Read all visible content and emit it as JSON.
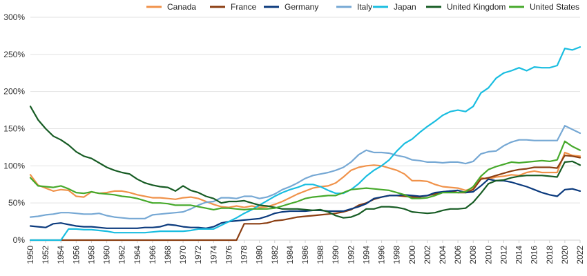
{
  "chart_data": {
    "type": "line",
    "title": "",
    "xlabel": "",
    "ylabel": "",
    "x": [
      1950,
      1951,
      1952,
      1953,
      1954,
      1955,
      1956,
      1957,
      1958,
      1959,
      1960,
      1961,
      1962,
      1963,
      1964,
      1965,
      1966,
      1967,
      1968,
      1969,
      1970,
      1971,
      1972,
      1973,
      1974,
      1975,
      1976,
      1977,
      1978,
      1979,
      1980,
      1981,
      1982,
      1983,
      1984,
      1985,
      1986,
      1987,
      1988,
      1989,
      1990,
      1991,
      1992,
      1993,
      1994,
      1995,
      1996,
      1997,
      1998,
      1999,
      2000,
      2001,
      2002,
      2003,
      2004,
      2005,
      2006,
      2007,
      2008,
      2009,
      2010,
      2011,
      2012,
      2013,
      2014,
      2015,
      2016,
      2017,
      2018,
      2019,
      2020,
      2021,
      2022
    ],
    "x_ticks": [
      1950,
      1952,
      1954,
      1956,
      1958,
      1960,
      1962,
      1964,
      1966,
      1968,
      1970,
      1972,
      1974,
      1976,
      1978,
      1980,
      1982,
      1984,
      1986,
      1988,
      1990,
      1992,
      1994,
      1996,
      1998,
      2000,
      2002,
      2004,
      2006,
      2008,
      2010,
      2012,
      2014,
      2016,
      2018,
      2020,
      2022
    ],
    "x_tick_labels": [
      "1950",
      "1952",
      "1954",
      "1956",
      "1958",
      "1960",
      "1962",
      "1964",
      "1966",
      "1968",
      "1970",
      "1972",
      "1974",
      "1976",
      "1978",
      "1980",
      "1982",
      "1984",
      "1986",
      "1988",
      "1990",
      "1992",
      "1994",
      "1996",
      "1998",
      "2000",
      "2002",
      "2004",
      "2006",
      "2008",
      "2010",
      "2012",
      "2014",
      "2016",
      "2018",
      "2020",
      "2022"
    ],
    "xlim": [
      1950,
      2022
    ],
    "ylim": [
      0,
      300
    ],
    "y_ticks": [
      0,
      50,
      100,
      150,
      200,
      250,
      300
    ],
    "y_tick_labels": [
      "0%",
      "50%",
      "100%",
      "150%",
      "200%",
      "250%",
      "300%"
    ],
    "grid": true,
    "legend_position": "top",
    "series": [
      {
        "name": "Canada",
        "color": "#f0924a",
        "values": [
          88,
          74,
          70,
          66,
          68,
          67,
          59,
          58,
          65,
          63,
          64,
          66,
          66,
          64,
          61,
          59,
          57,
          57,
          56,
          55,
          57,
          58,
          56,
          52,
          48,
          45,
          44,
          46,
          44,
          46,
          44,
          45,
          48,
          52,
          57,
          62,
          66,
          70,
          72,
          73,
          77,
          85,
          94,
          98,
          100,
          101,
          100,
          97,
          94,
          89,
          80,
          80,
          79,
          75,
          72,
          71,
          70,
          67,
          70,
          84,
          82,
          85,
          86,
          88,
          87,
          91,
          93,
          91,
          91,
          91,
          118,
          114,
          113
        ]
      },
      {
        "name": "France",
        "color": "#8b3e12",
        "values": [
          0,
          0,
          0,
          0,
          0,
          0,
          0,
          0,
          0,
          0,
          0,
          0,
          0,
          0,
          0,
          0,
          0,
          0,
          0,
          0,
          0,
          0,
          0,
          0,
          0,
          0,
          0,
          0,
          22,
          22,
          22,
          23,
          26,
          27,
          29,
          31,
          32,
          33,
          34,
          35,
          36,
          38,
          41,
          47,
          50,
          55,
          58,
          60,
          60,
          59,
          58,
          58,
          60,
          62,
          65,
          66,
          64,
          64,
          68,
          82,
          84,
          87,
          90,
          93,
          95,
          96,
          98,
          98,
          98,
          97,
          114,
          113,
          111
        ]
      },
      {
        "name": "Germany",
        "color": "#0b3a7d",
        "values": [
          19,
          18,
          17,
          22,
          23,
          21,
          19,
          18,
          18,
          17,
          16,
          16,
          16,
          16,
          16,
          17,
          17,
          18,
          21,
          20,
          18,
          17,
          17,
          16,
          18,
          23,
          25,
          26,
          27,
          28,
          29,
          32,
          36,
          38,
          39,
          39,
          39,
          40,
          40,
          39,
          39,
          39,
          42,
          45,
          49,
          56,
          58,
          60,
          60,
          61,
          60,
          59,
          60,
          64,
          65,
          66,
          67,
          64,
          65,
          73,
          82,
          80,
          80,
          78,
          75,
          72,
          68,
          64,
          61,
          59,
          68,
          69,
          66
        ]
      },
      {
        "name": "Italy",
        "color": "#76a8d4",
        "values": [
          31,
          32,
          34,
          35,
          37,
          37,
          36,
          35,
          35,
          36,
          33,
          31,
          30,
          29,
          29,
          29,
          34,
          35,
          36,
          37,
          38,
          42,
          47,
          51,
          52,
          57,
          57,
          56,
          59,
          59,
          56,
          58,
          62,
          68,
          72,
          77,
          83,
          87,
          89,
          91,
          94,
          98,
          105,
          115,
          121,
          118,
          118,
          117,
          114,
          112,
          108,
          107,
          105,
          105,
          104,
          105,
          105,
          103,
          106,
          116,
          119,
          120,
          127,
          132,
          135,
          135,
          134,
          134,
          134,
          134,
          154,
          149,
          144
        ]
      },
      {
        "name": "Japan",
        "color": "#19bde0",
        "values": [
          0,
          0,
          0,
          0,
          0,
          15,
          15,
          14,
          14,
          13,
          12,
          10,
          10,
          10,
          10,
          10,
          11,
          12,
          12,
          12,
          12,
          13,
          15,
          15,
          15,
          20,
          25,
          30,
          36,
          41,
          47,
          53,
          59,
          64,
          68,
          71,
          75,
          75,
          72,
          67,
          63,
          63,
          68,
          76,
          86,
          94,
          100,
          108,
          120,
          130,
          136,
          145,
          153,
          160,
          168,
          173,
          175,
          173,
          180,
          198,
          205,
          218,
          225,
          228,
          232,
          228,
          233,
          232,
          232,
          235,
          258,
          256,
          260
        ]
      },
      {
        "name": "United Kingdom",
        "color": "#175c24",
        "values": [
          180,
          162,
          150,
          140,
          135,
          128,
          119,
          113,
          110,
          104,
          98,
          94,
          91,
          89,
          82,
          77,
          74,
          72,
          71,
          66,
          73,
          67,
          64,
          59,
          56,
          50,
          52,
          52,
          53,
          50,
          47,
          46,
          44,
          42,
          42,
          42,
          41,
          40,
          41,
          38,
          33,
          30,
          31,
          35,
          42,
          42,
          45,
          45,
          44,
          42,
          38,
          37,
          36,
          37,
          40,
          42,
          42,
          43,
          51,
          63,
          76,
          80,
          81,
          84,
          86,
          87,
          87,
          87,
          86,
          85,
          105,
          106,
          101
        ]
      },
      {
        "name": "United States",
        "color": "#46a92b",
        "values": [
          84,
          73,
          72,
          71,
          73,
          69,
          64,
          63,
          65,
          63,
          62,
          61,
          59,
          58,
          56,
          53,
          50,
          50,
          49,
          47,
          47,
          47,
          45,
          43,
          41,
          43,
          43,
          42,
          41,
          42,
          42,
          42,
          43,
          46,
          49,
          52,
          56,
          58,
          59,
          60,
          60,
          64,
          68,
          69,
          70,
          69,
          68,
          67,
          64,
          61,
          56,
          56,
          57,
          60,
          64,
          64,
          64,
          65,
          72,
          86,
          95,
          99,
          102,
          105,
          104,
          105,
          106,
          107,
          106,
          108,
          133,
          126,
          121
        ]
      }
    ]
  }
}
